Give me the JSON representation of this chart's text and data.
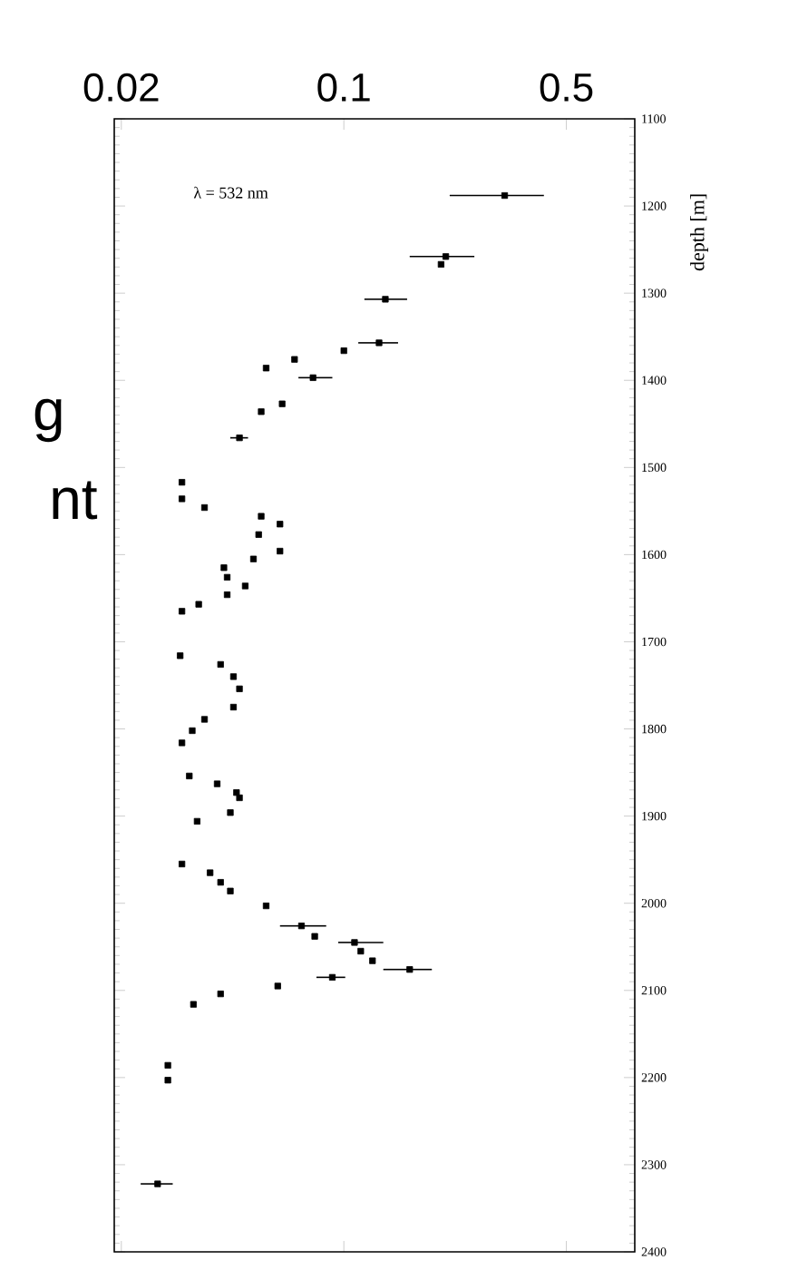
{
  "chart_data": {
    "type": "scatter",
    "ylabel": "depth [m]",
    "annotations": [
      "λ = 532 nm",
      "g",
      "nt"
    ],
    "log": "x",
    "marker": "square",
    "xlim": [
      0.019,
      0.82
    ],
    "xticks": [
      0.02,
      0.1,
      0.5
    ],
    "ylim": [
      2400,
      1100
    ],
    "yticks": [
      1100,
      1200,
      1300,
      1400,
      1500,
      1600,
      1700,
      1800,
      1900,
      2000,
      2100,
      2200,
      2300,
      2400
    ],
    "series": [
      {
        "color": "#000000",
        "x": [
          0.32,
          0.209,
          0.202,
          0.135,
          0.129,
          0.1,
          0.07,
          0.057,
          0.08,
          0.064,
          0.055,
          0.047,
          0.031,
          0.031,
          0.0365,
          0.055,
          0.063,
          0.054,
          0.063,
          0.052,
          0.042,
          0.043,
          0.049,
          0.043,
          0.035,
          0.031,
          0.0306,
          0.041,
          0.045,
          0.047,
          0.045,
          0.0365,
          0.0334,
          0.031,
          0.0327,
          0.04,
          0.046,
          0.047,
          0.044,
          0.0346,
          0.031,
          0.038,
          0.041,
          0.044,
          0.057,
          0.0736,
          0.081,
          0.108,
          0.113,
          0.123,
          0.161,
          0.092,
          0.062,
          0.041,
          0.0337,
          0.028,
          0.028,
          0.026
        ],
        "values": [
          1188,
          1258,
          1267,
          1307,
          1357,
          1366,
          1376,
          1386,
          1397,
          1427,
          1436,
          1466,
          1517,
          1536,
          1546,
          1556,
          1565,
          1577,
          1596,
          1605,
          1615,
          1626,
          1636,
          1646,
          1657,
          1665,
          1716,
          1726,
          1740,
          1754,
          1775,
          1789,
          1802,
          1816,
          1854,
          1863,
          1873,
          1879,
          1896,
          1906,
          1955,
          1965,
          1976,
          1986,
          2003,
          2026,
          2038,
          2045,
          2055,
          2066,
          2076,
          2085,
          2095,
          2104,
          2116,
          2186,
          2203,
          2322
        ],
        "xerrors": [
          [
            0.215,
            0.425
          ],
          [
            0.161,
            0.257
          ],
          null,
          [
            0.116,
            0.158
          ],
          [
            0.111,
            0.148
          ],
          null,
          null,
          null,
          [
            0.072,
            0.092
          ],
          null,
          null,
          [
            0.044,
            0.05
          ],
          null,
          null,
          null,
          null,
          null,
          null,
          null,
          null,
          null,
          null,
          null,
          null,
          null,
          null,
          null,
          null,
          null,
          null,
          null,
          null,
          null,
          null,
          null,
          null,
          null,
          null,
          null,
          null,
          null,
          null,
          null,
          null,
          null,
          [
            0.063,
            0.088
          ],
          null,
          [
            0.096,
            0.133
          ],
          null,
          null,
          [
            0.133,
            0.189
          ],
          [
            0.082,
            0.101
          ],
          null,
          null,
          null,
          null,
          null,
          [
            0.023,
            0.029
          ]
        ]
      }
    ]
  }
}
